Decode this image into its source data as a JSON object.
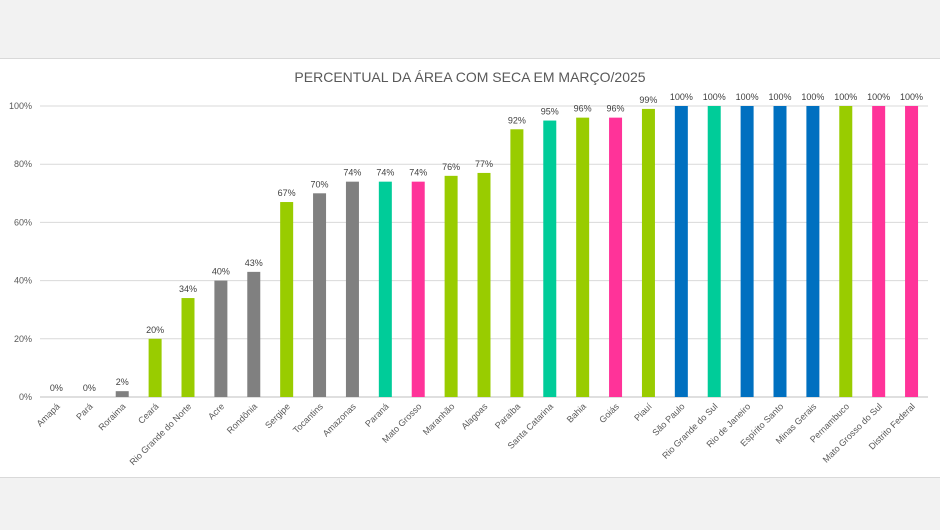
{
  "chart_data": {
    "type": "bar",
    "title": "PERCENTUAL DA ÁREA COM SECA EM MARÇO/2025",
    "xlabel": "",
    "ylabel": "",
    "ylim": [
      0,
      100
    ],
    "yticks": [
      0,
      20,
      40,
      60,
      80,
      100
    ],
    "ytick_labels": [
      "0%",
      "20%",
      "40%",
      "60%",
      "80%",
      "100%"
    ],
    "grid": true,
    "legend": "none",
    "categories": [
      "Amapá",
      "Pará",
      "Roraima",
      "Ceará",
      "Rio Grande do Norte",
      "Acre",
      "Rondônia",
      "Sergipe",
      "Tocantins",
      "Amazonas",
      "Paraná",
      "Mato Grosso",
      "Maranhão",
      "Alagoas",
      "Paraíba",
      "Santa Catarina",
      "Bahia",
      "Goiás",
      "Piauí",
      "São Paulo",
      "Rio Grande do Sul",
      "Rio de Janeiro",
      "Espírito Santo",
      "Minas Gerais",
      "Pernambuco",
      "Mato Grosso do Sul",
      "Distrito Federal"
    ],
    "values": [
      0,
      0,
      2,
      20,
      34,
      40,
      43,
      67,
      70,
      74,
      74,
      74,
      76,
      77,
      92,
      95,
      96,
      96,
      99,
      100,
      100,
      100,
      100,
      100,
      100,
      100,
      100
    ],
    "labels": [
      "0%",
      "0%",
      "2%",
      "20%",
      "34%",
      "40%",
      "43%",
      "67%",
      "70%",
      "74%",
      "74%",
      "74%",
      "76%",
      "77%",
      "92%",
      "95%",
      "96%",
      "96%",
      "99%",
      "100%",
      "100%",
      "100%",
      "100%",
      "100%",
      "100%",
      "100%",
      "100%"
    ],
    "colors": [
      "#808080",
      "#808080",
      "#808080",
      "#99cc00",
      "#99cc00",
      "#808080",
      "#808080",
      "#99cc00",
      "#808080",
      "#808080",
      "#00cc99",
      "#ff3399",
      "#99cc00",
      "#99cc00",
      "#99cc00",
      "#00cc99",
      "#99cc00",
      "#ff3399",
      "#99cc00",
      "#0070c0",
      "#00cc99",
      "#0070c0",
      "#0070c0",
      "#0070c0",
      "#99cc00",
      "#ff3399",
      "#ff3399"
    ]
  },
  "style": {
    "gridline_color": "#d9d9d9",
    "axis_color": "#bfbfbf"
  }
}
